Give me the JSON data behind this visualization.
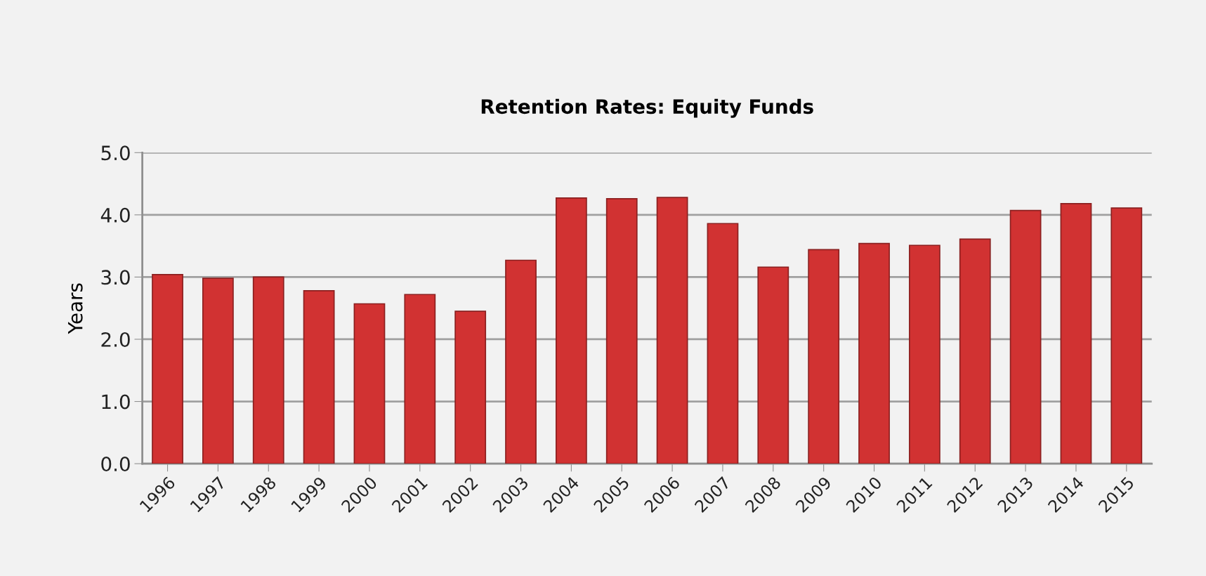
{
  "chart_data": {
    "type": "bar",
    "title": "Retention Rates: Equity Funds",
    "ylabel": "Years",
    "categories": [
      "1996",
      "1997",
      "1998",
      "1999",
      "2000",
      "2001",
      "2002",
      "2003",
      "2004",
      "2005",
      "2006",
      "2007",
      "2008",
      "2009",
      "2010",
      "2011",
      "2012",
      "2013",
      "2014",
      "2015"
    ],
    "values": [
      3.04,
      2.98,
      3.0,
      2.78,
      2.57,
      2.72,
      2.45,
      3.27,
      4.27,
      4.26,
      4.28,
      3.86,
      3.16,
      3.44,
      3.54,
      3.51,
      3.61,
      4.07,
      4.18,
      4.11
    ],
    "color": "#d13232",
    "ylim": [
      0,
      5
    ],
    "yticks": [
      {
        "value": 0,
        "label": "0.0"
      },
      {
        "value": 1,
        "label": "1.0"
      },
      {
        "value": 2,
        "label": "2.0"
      },
      {
        "value": 3,
        "label": "3.0"
      },
      {
        "value": 4,
        "label": "4.0"
      },
      {
        "value": 5,
        "label": "5.0"
      }
    ],
    "grid": "y",
    "legend": false
  }
}
